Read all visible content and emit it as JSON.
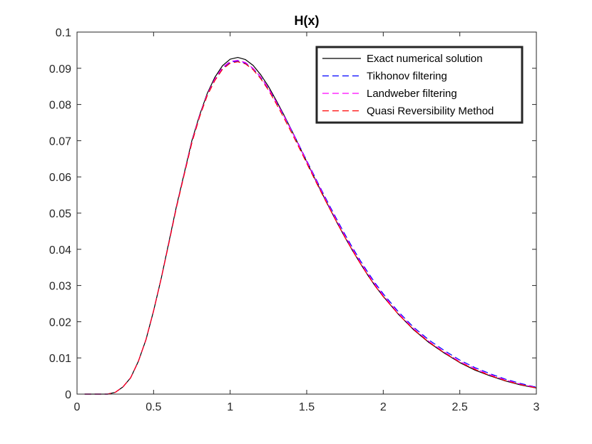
{
  "chart_data": {
    "type": "line",
    "title": "H(x)",
    "xlabel": "",
    "ylabel": "",
    "xlim": [
      0,
      3
    ],
    "ylim": [
      0,
      0.1
    ],
    "xticks": [
      "0",
      "0.5",
      "1",
      "1.5",
      "2",
      "2.5",
      "3"
    ],
    "yticks": [
      "0",
      "0.01",
      "0.02",
      "0.03",
      "0.04",
      "0.05",
      "0.06",
      "0.07",
      "0.08",
      "0.09",
      "0.1"
    ],
    "grid": false,
    "legend_position": "top-right",
    "x": [
      0.05,
      0.1,
      0.15,
      0.2,
      0.25,
      0.3,
      0.35,
      0.4,
      0.45,
      0.5,
      0.55,
      0.6,
      0.65,
      0.7,
      0.75,
      0.8,
      0.85,
      0.9,
      0.95,
      1.0,
      1.05,
      1.1,
      1.15,
      1.2,
      1.25,
      1.3,
      1.35,
      1.4,
      1.45,
      1.5,
      1.55,
      1.6,
      1.65,
      1.7,
      1.75,
      1.8,
      1.85,
      1.9,
      1.95,
      2.0,
      2.1,
      2.2,
      2.3,
      2.4,
      2.5,
      2.6,
      2.7,
      2.8,
      2.9,
      3.0
    ],
    "series": [
      {
        "name": "Exact numerical solution",
        "color": "#000000",
        "dash": "solid",
        "values": [
          0.0,
          0.0,
          0.0,
          0.0,
          0.0005,
          0.002,
          0.0045,
          0.009,
          0.015,
          0.023,
          0.032,
          0.042,
          0.052,
          0.061,
          0.07,
          0.077,
          0.083,
          0.0875,
          0.0907,
          0.0925,
          0.093,
          0.0924,
          0.0908,
          0.0882,
          0.085,
          0.0812,
          0.0772,
          0.073,
          0.0686,
          0.0642,
          0.0598,
          0.0555,
          0.0513,
          0.0472,
          0.0433,
          0.0396,
          0.0361,
          0.0328,
          0.0297,
          0.027,
          0.022,
          0.0177,
          0.0142,
          0.0113,
          0.0087,
          0.0066,
          0.005,
          0.0036,
          0.0025,
          0.0017
        ]
      },
      {
        "name": "Tikhonov filtering",
        "color": "#0000ff",
        "dash": "dashed",
        "values": [
          0.0,
          0.0,
          0.0,
          0.0,
          0.0005,
          0.002,
          0.0045,
          0.009,
          0.015,
          0.023,
          0.032,
          0.0418,
          0.0518,
          0.0608,
          0.0696,
          0.0767,
          0.0826,
          0.0868,
          0.09,
          0.0917,
          0.092,
          0.0914,
          0.0899,
          0.0875,
          0.0844,
          0.0808,
          0.077,
          0.073,
          0.0688,
          0.0645,
          0.0603,
          0.0561,
          0.052,
          0.048,
          0.0441,
          0.0404,
          0.0369,
          0.0336,
          0.0305,
          0.0277,
          0.0227,
          0.0184,
          0.0149,
          0.012,
          0.0094,
          0.0073,
          0.0056,
          0.0041,
          0.0029,
          0.0019
        ]
      },
      {
        "name": "Landweber filtering",
        "color": "#ff00ff",
        "dash": "dashed",
        "values": [
          0.0,
          0.0,
          0.0,
          0.0,
          0.0005,
          0.002,
          0.0045,
          0.009,
          0.015,
          0.023,
          0.032,
          0.0418,
          0.0518,
          0.0608,
          0.0697,
          0.0768,
          0.0827,
          0.087,
          0.0902,
          0.0919,
          0.0922,
          0.0916,
          0.09,
          0.0876,
          0.0845,
          0.0808,
          0.0769,
          0.0728,
          0.0686,
          0.0643,
          0.06,
          0.0558,
          0.0516,
          0.0476,
          0.0437,
          0.04,
          0.0365,
          0.0332,
          0.0301,
          0.0273,
          0.0223,
          0.018,
          0.0145,
          0.0116,
          0.009,
          0.007,
          0.0053,
          0.0039,
          0.0027,
          0.0018
        ]
      },
      {
        "name": "Quasi Reversibility Method",
        "color": "#ff0000",
        "dash": "dashed",
        "values": [
          0.0,
          0.0,
          0.0,
          0.0,
          0.0005,
          0.002,
          0.0045,
          0.009,
          0.015,
          0.023,
          0.032,
          0.0417,
          0.0517,
          0.0606,
          0.0694,
          0.0765,
          0.0824,
          0.0866,
          0.0897,
          0.0914,
          0.0918,
          0.0912,
          0.0896,
          0.0871,
          0.084,
          0.0803,
          0.0764,
          0.0723,
          0.0681,
          0.0638,
          0.0595,
          0.0553,
          0.0512,
          0.0472,
          0.0433,
          0.0396,
          0.0361,
          0.0328,
          0.0297,
          0.0269,
          0.022,
          0.0178,
          0.0143,
          0.0114,
          0.0088,
          0.0068,
          0.0051,
          0.0037,
          0.0026,
          0.0017
        ]
      }
    ]
  }
}
